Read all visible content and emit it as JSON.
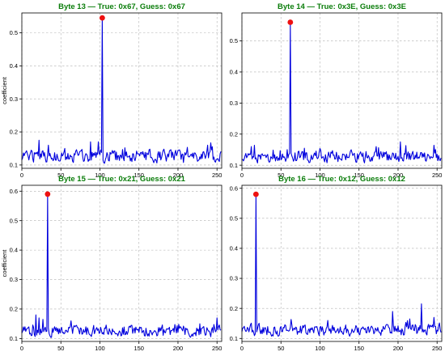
{
  "colors": {
    "series": "#0000dd",
    "marker": "#ee1111",
    "title": "#0a7d0a",
    "grid": "#b0b0b0"
  },
  "chart_data": [
    {
      "type": "line",
      "title": "Byte 13 — True: 0x67, Guess: 0x67",
      "xlabel": "",
      "ylabel": "coefficient",
      "xlim": [
        0,
        256
      ],
      "ylim": [
        0.09,
        0.56
      ],
      "xticks": [
        0,
        50,
        100,
        150,
        200,
        250
      ],
      "yticks": [
        0.1,
        0.2,
        0.3,
        0.4,
        0.5
      ],
      "ytick_labels": [
        "0.1",
        "0.2",
        "0.3",
        "0.4",
        "0.5"
      ],
      "grid": true,
      "seed": 13,
      "baseline": 0.128,
      "peak": {
        "x": 103,
        "y": 0.545
      },
      "bumps": [
        [
          22,
          0.175
        ],
        [
          34,
          0.16
        ],
        [
          88,
          0.17
        ],
        [
          98,
          0.17
        ],
        [
          132,
          0.152
        ],
        [
          238,
          0.16
        ],
        [
          244,
          0.155
        ]
      ]
    },
    {
      "type": "line",
      "title": "Byte 14 — True: 0x3E, Guess: 0x3E",
      "xlabel": "",
      "ylabel": "",
      "xlim": [
        0,
        256
      ],
      "ylim": [
        0.09,
        0.59
      ],
      "xticks": [
        0,
        50,
        100,
        150,
        200,
        250
      ],
      "yticks": [
        0.1,
        0.2,
        0.3,
        0.4,
        0.5
      ],
      "ytick_labels": [
        "0.1",
        "0.2",
        "0.3",
        "0.4",
        "0.5"
      ],
      "grid": true,
      "seed": 14,
      "baseline": 0.128,
      "peak": {
        "x": 62,
        "y": 0.56
      },
      "bumps": [
        [
          12,
          0.16
        ],
        [
          58,
          0.15
        ],
        [
          172,
          0.16
        ],
        [
          203,
          0.175
        ],
        [
          248,
          0.15
        ]
      ]
    },
    {
      "type": "line",
      "title": "Byte 15 — True: 0x21, Guess: 0x21",
      "xlabel": "",
      "ylabel": "coefficient",
      "xlim": [
        0,
        256
      ],
      "ylim": [
        0.09,
        0.62
      ],
      "xticks": [
        0,
        50,
        100,
        150,
        200,
        250
      ],
      "yticks": [
        0.1,
        0.2,
        0.3,
        0.4,
        0.5,
        0.6
      ],
      "ytick_labels": [
        "0.1",
        "0.2",
        "0.3",
        "0.4",
        "0.5",
        "0.6"
      ],
      "grid": true,
      "seed": 15,
      "baseline": 0.126,
      "peak": {
        "x": 33,
        "y": 0.59
      },
      "bumps": [
        [
          18,
          0.18
        ],
        [
          22,
          0.17
        ],
        [
          27,
          0.165
        ],
        [
          63,
          0.16
        ],
        [
          228,
          0.15
        ],
        [
          250,
          0.17
        ]
      ]
    },
    {
      "type": "line",
      "title": "Byte 16 — True: 0x12, Guess: 0x12",
      "xlabel": "",
      "ylabel": "",
      "xlim": [
        0,
        256
      ],
      "ylim": [
        0.09,
        0.61
      ],
      "xticks": [
        0,
        50,
        100,
        150,
        200,
        250
      ],
      "yticks": [
        0.1,
        0.2,
        0.3,
        0.4,
        0.5,
        0.6
      ],
      "ytick_labels": [
        "0.1",
        "0.2",
        "0.3",
        "0.4",
        "0.5",
        "0.6"
      ],
      "grid": true,
      "seed": 16,
      "baseline": 0.128,
      "peak": {
        "x": 18,
        "y": 0.58
      },
      "bumps": [
        [
          110,
          0.16
        ],
        [
          193,
          0.19
        ],
        [
          215,
          0.165
        ],
        [
          230,
          0.215
        ],
        [
          246,
          0.17
        ]
      ]
    }
  ]
}
